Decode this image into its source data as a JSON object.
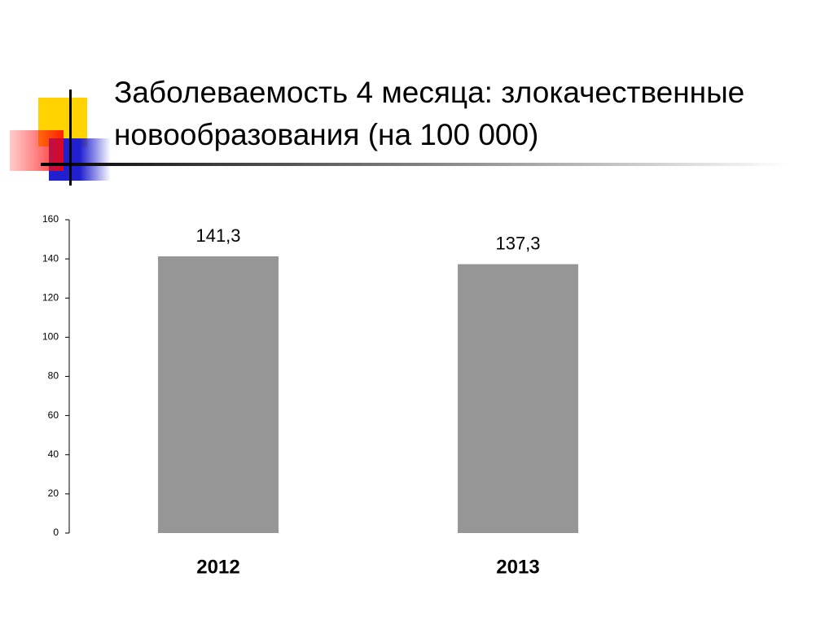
{
  "chart_data": {
    "type": "bar",
    "title": "Заболеваемость 4 месяца: злокачественные новообразования (на 100 000)",
    "categories": [
      "2012",
      "2013"
    ],
    "values": [
      141.3,
      137.3
    ],
    "value_labels": [
      "141,3",
      "137,3"
    ],
    "color": "#969696",
    "ylim": [
      0,
      160
    ],
    "yticks": [
      0,
      20,
      40,
      60,
      80,
      100,
      120,
      140,
      160
    ],
    "grid": false
  }
}
